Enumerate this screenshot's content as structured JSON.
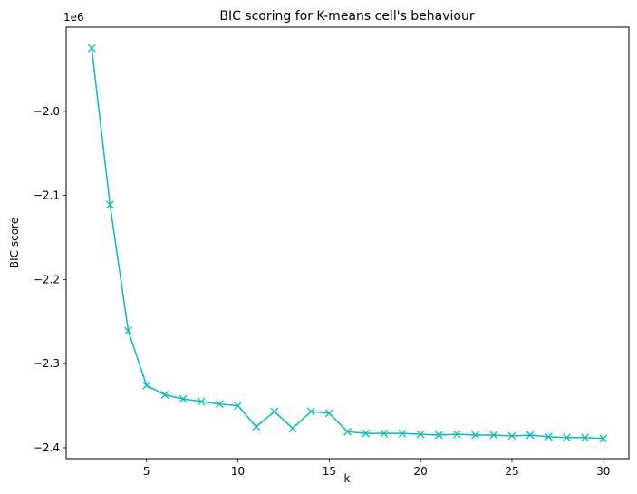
{
  "chart_data": {
    "type": "line",
    "title": "BIC scoring for K-means cell's behaviour",
    "xlabel": "k",
    "ylabel": "BIC score",
    "offset_text": "1e6",
    "x_ticks": [
      5,
      10,
      15,
      20,
      25,
      30
    ],
    "x_tick_labels": [
      "5",
      "10",
      "15",
      "20",
      "25",
      "30"
    ],
    "y_ticks": [
      -2.4,
      -2.3,
      -2.2,
      -2.1,
      -2.0
    ],
    "y_tick_labels": [
      "−2.4",
      "−2.3",
      "−2.2",
      "−2.1",
      "−2.0"
    ],
    "xlim": [
      0.6,
      31.4
    ],
    "ylim": [
      -2.413,
      -1.9
    ],
    "grid": false,
    "marker": "x",
    "color": "#00bfbf",
    "series": [
      {
        "x": [
          2,
          3,
          4,
          5,
          6,
          7,
          8,
          9,
          10,
          11,
          12,
          13,
          14,
          15,
          16,
          17,
          18,
          19,
          20,
          21,
          22,
          23,
          24,
          25,
          26,
          27,
          28,
          29,
          30
        ],
        "values": [
          -1.925,
          -2.111,
          -2.261,
          -2.326,
          -2.337,
          -2.342,
          -2.345,
          -2.348,
          -2.35,
          -2.375,
          -2.357,
          -2.377,
          -2.357,
          -2.359,
          -2.381,
          -2.383,
          -2.383,
          -2.383,
          -2.384,
          -2.385,
          -2.384,
          -2.385,
          -2.385,
          -2.386,
          -2.385,
          -2.387,
          -2.388,
          -2.388,
          -2.389
        ]
      }
    ]
  }
}
